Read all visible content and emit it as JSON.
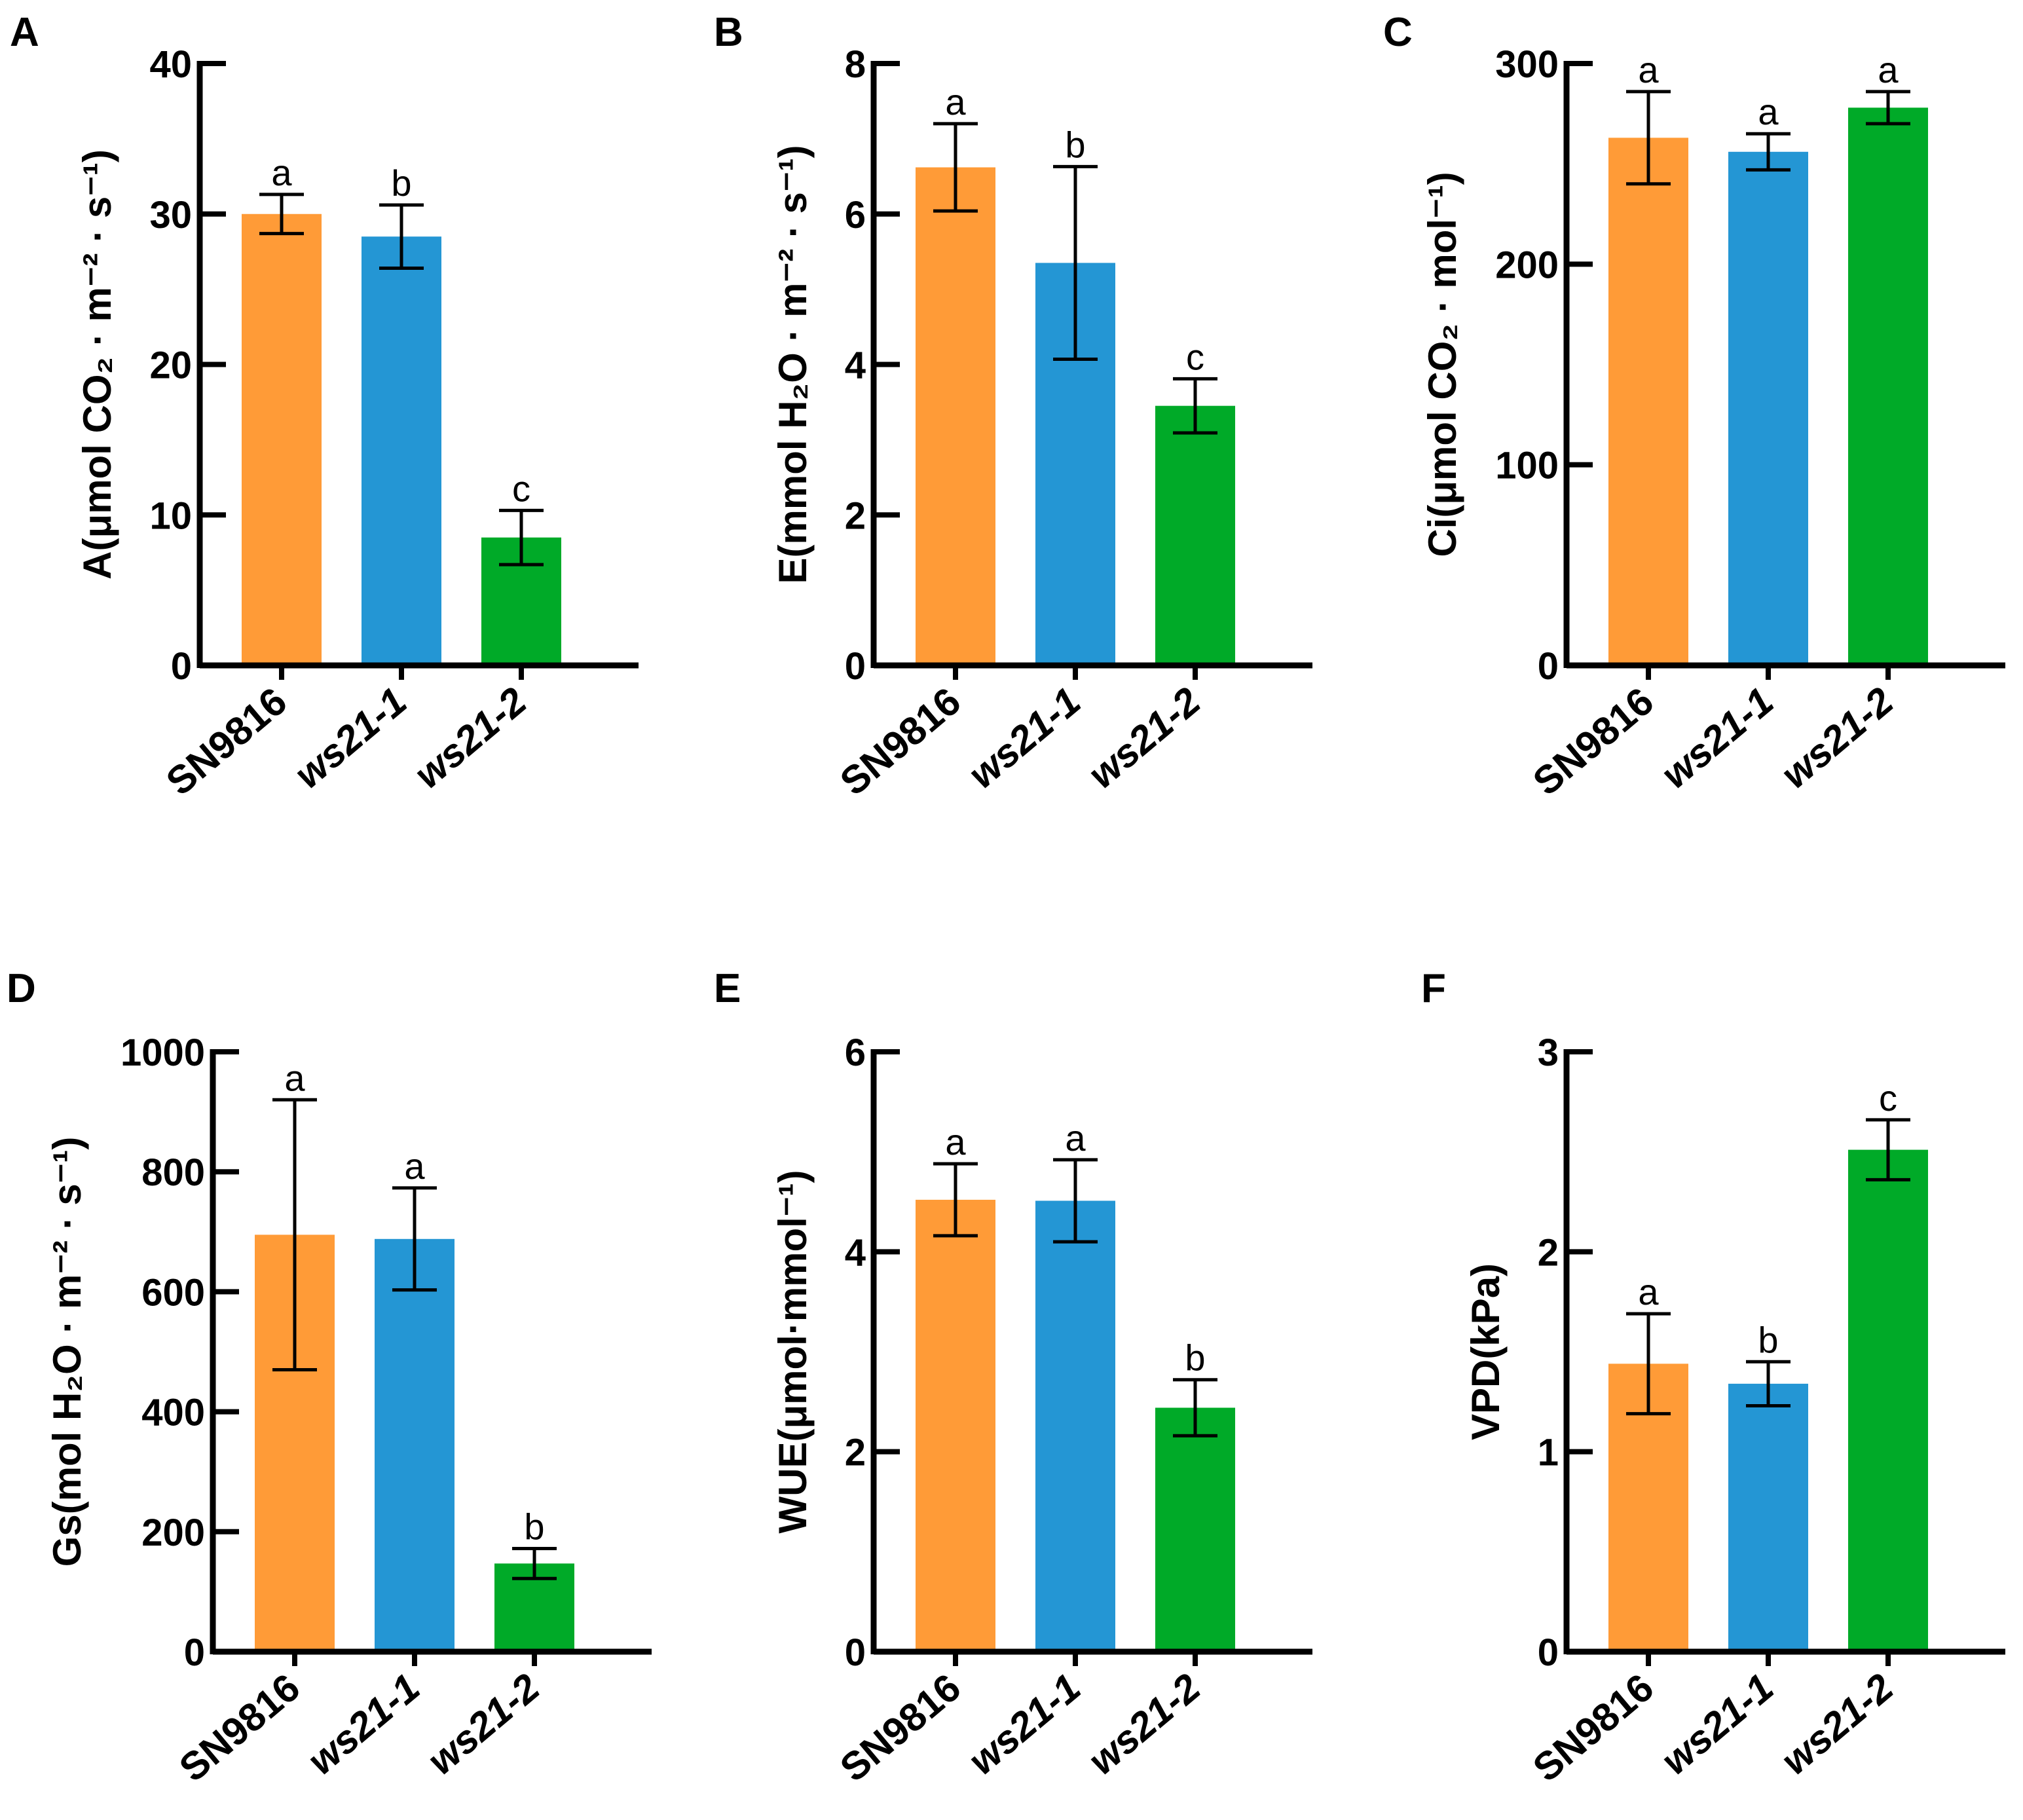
{
  "colors": {
    "SN9816": "#FF9B37",
    "ws21-1": "#2496D4",
    "ws21-2": "#00AA28",
    "axis": "#000000"
  },
  "chart_data": [
    {
      "type": "bar",
      "panel": "A",
      "ylabel": "A(μmol CO₂ · m⁻² · s⁻¹)",
      "categories": [
        "SN9816",
        "ws21-1",
        "ws21-2"
      ],
      "values": [
        30,
        28.5,
        8.5
      ],
      "errors": [
        1.3,
        2.1,
        1.8
      ],
      "significance": [
        "a",
        "b",
        "c"
      ],
      "ylim": [
        0,
        40
      ],
      "yticks": [
        0,
        10,
        20,
        30,
        40
      ]
    },
    {
      "type": "bar",
      "panel": "B",
      "ylabel": "E(mmol H₂O · m⁻² · s⁻¹)",
      "categories": [
        "SN9816",
        "ws21-1",
        "ws21-2"
      ],
      "values": [
        6.62,
        5.35,
        3.45
      ],
      "errors": [
        0.58,
        1.28,
        0.36
      ],
      "significance": [
        "a",
        "b",
        "c"
      ],
      "ylim": [
        0,
        8
      ],
      "yticks": [
        0,
        2,
        4,
        6,
        8
      ]
    },
    {
      "type": "bar",
      "panel": "C",
      "ylabel": "Ci(μmol CO₂ · mol⁻¹)",
      "categories": [
        "SN9816",
        "ws21-1",
        "ws21-2"
      ],
      "values": [
        263,
        256,
        278
      ],
      "errors": [
        23,
        9,
        8
      ],
      "significance": [
        "a",
        "a",
        "a"
      ],
      "ylim": [
        0,
        300
      ],
      "yticks": [
        0,
        100,
        200,
        300
      ]
    },
    {
      "type": "bar",
      "panel": "D",
      "ylabel": "Gs(mol H₂O · m⁻² · s⁻¹)",
      "categories": [
        "SN9816",
        "ws21-1",
        "ws21-2"
      ],
      "values": [
        695,
        688,
        147
      ],
      "errors": [
        225,
        85,
        25
      ],
      "significance": [
        "a",
        "a",
        "b"
      ],
      "ylim": [
        0,
        1000
      ],
      "yticks": [
        0,
        200,
        400,
        600,
        800,
        1000
      ]
    },
    {
      "type": "bar",
      "panel": "E",
      "ylabel": "WUE(μmol·mmol⁻¹)",
      "categories": [
        "SN9816",
        "ws21-1",
        "ws21-2"
      ],
      "values": [
        4.52,
        4.51,
        2.44
      ],
      "errors": [
        0.36,
        0.41,
        0.28
      ],
      "significance": [
        "a",
        "a",
        "b"
      ],
      "ylim": [
        0,
        6
      ],
      "yticks": [
        0,
        2,
        4,
        6
      ]
    },
    {
      "type": "bar",
      "panel": "F",
      "ylabel": "VPD(kPa)",
      "categories": [
        "SN9816",
        "ws21-1",
        "ws21-2"
      ],
      "values": [
        1.44,
        1.34,
        2.51
      ],
      "errors": [
        0.25,
        0.11,
        0.15
      ],
      "significance": [
        "a",
        "b",
        "c"
      ],
      "ylim": [
        0,
        3
      ],
      "yticks": [
        0,
        1,
        2,
        3
      ]
    }
  ]
}
